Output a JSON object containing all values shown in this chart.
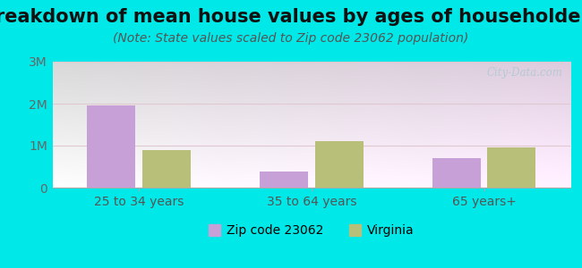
{
  "title": "Breakdown of mean house values by ages of householders",
  "subtitle": "(Note: State values scaled to Zip code 23062 population)",
  "categories": [
    "25 to 34 years",
    "35 to 64 years",
    "65 years+"
  ],
  "zip_values": [
    1950000,
    380000,
    700000
  ],
  "state_values": [
    900000,
    1100000,
    960000
  ],
  "zip_color": "#c8a0d8",
  "state_color": "#b8bf78",
  "background_color": "#00e8e8",
  "ylim": [
    0,
    3000000
  ],
  "yticks": [
    0,
    1000000,
    2000000,
    3000000
  ],
  "ytick_labels": [
    "0",
    "1M",
    "2M",
    "3M"
  ],
  "legend_zip": "Zip code 23062",
  "legend_state": "Virginia",
  "watermark": "City-Data.com",
  "bar_width": 0.28,
  "title_fontsize": 15,
  "subtitle_fontsize": 10,
  "tick_fontsize": 10,
  "legend_fontsize": 10,
  "ytick_color": "#666666",
  "xtick_color": "#555555",
  "grid_color": "#e0c8d0",
  "plot_gradient_colors": [
    "#e8f5e8",
    "#f5fff5",
    "#ffffff",
    "#f0f8f0"
  ]
}
